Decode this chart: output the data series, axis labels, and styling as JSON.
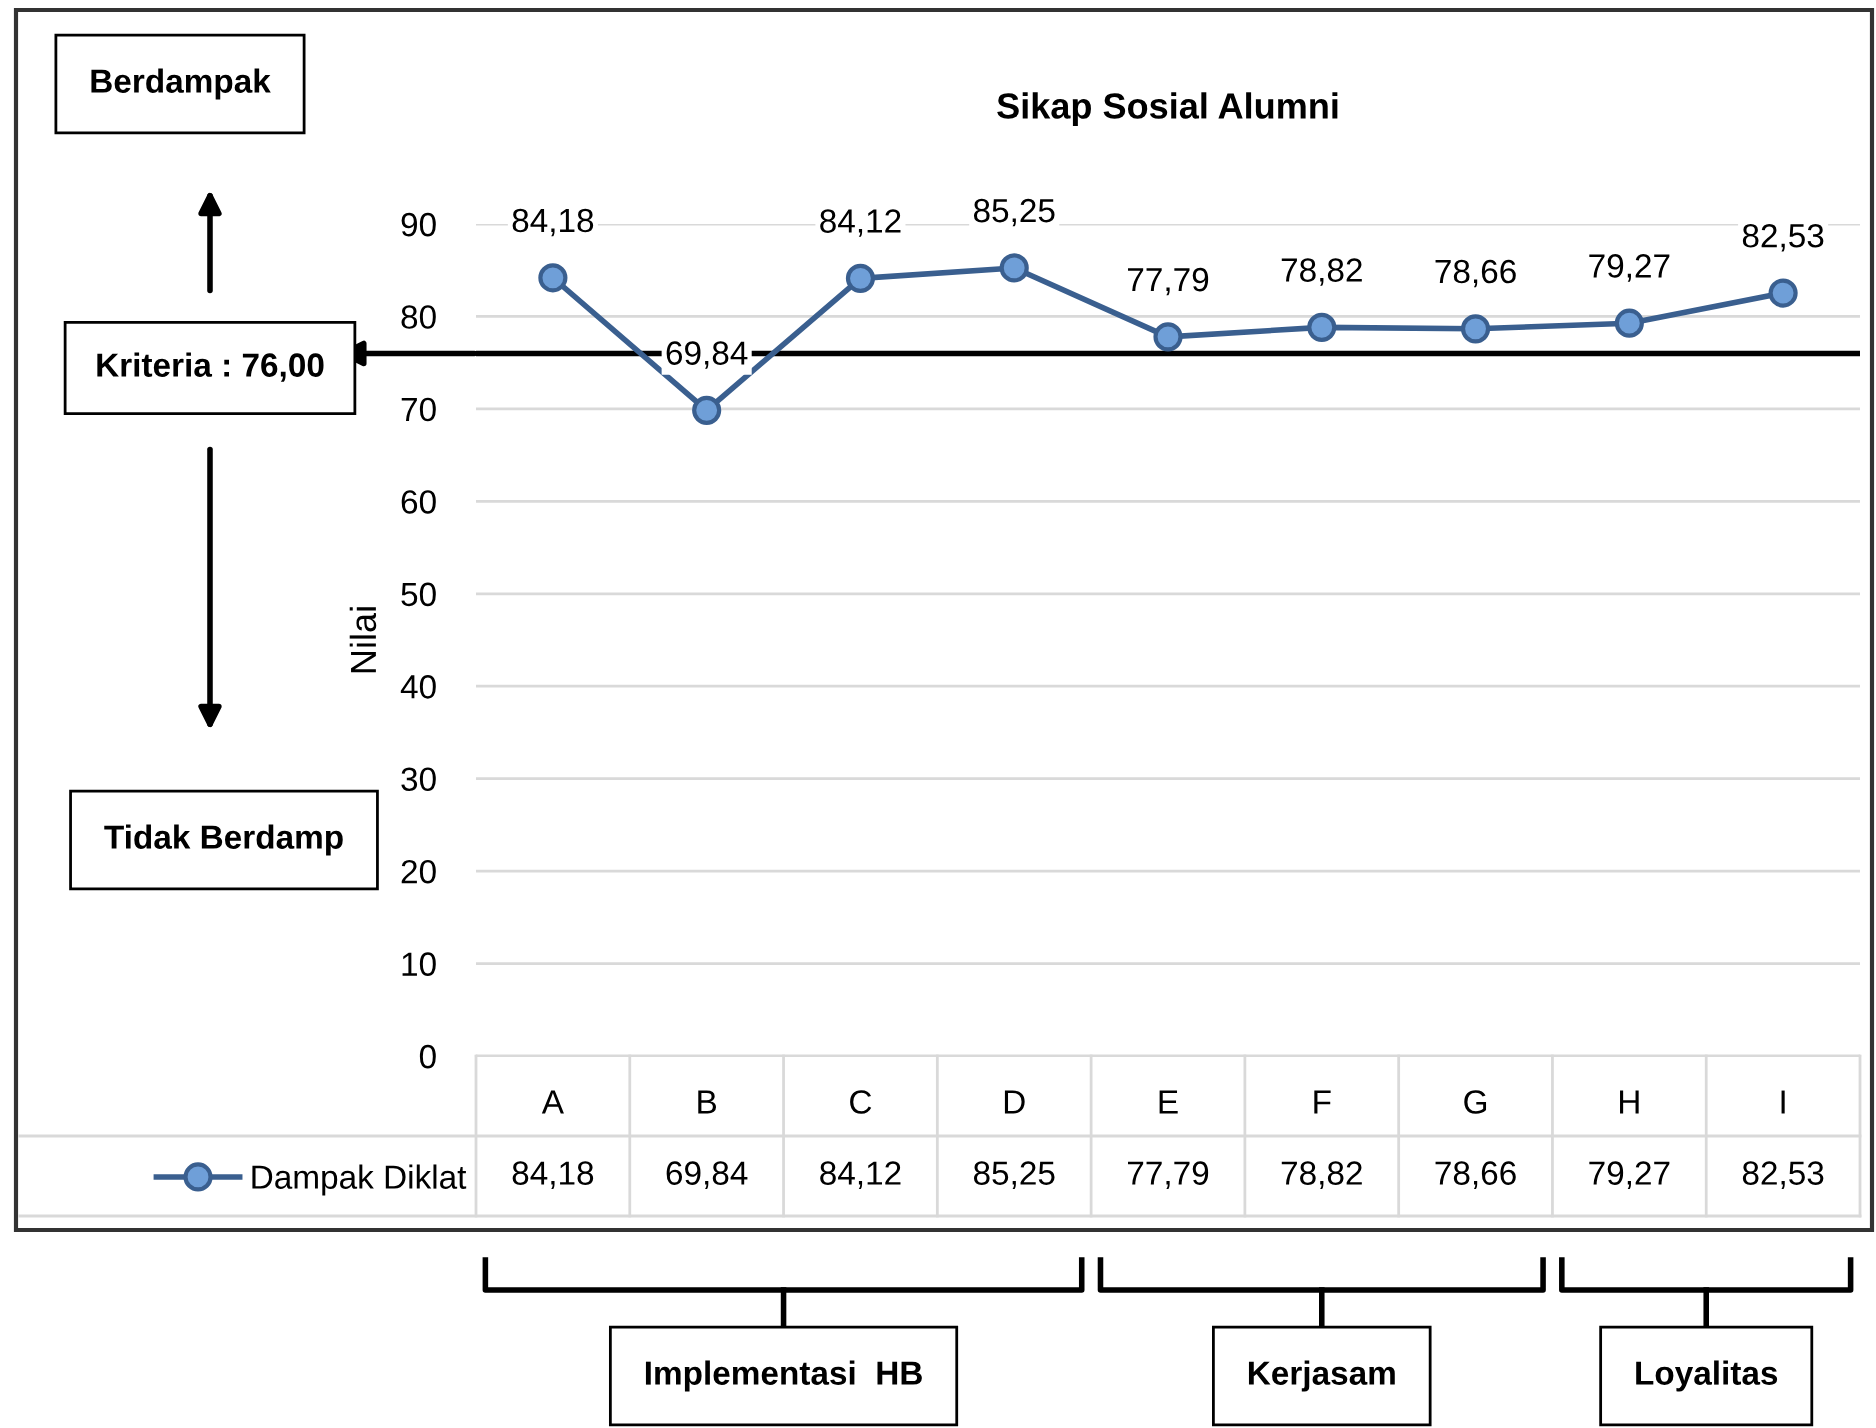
{
  "chart_data": {
    "type": "line",
    "title": "Sikap Sosial Alumni",
    "ylabel": "Nilai",
    "categories": [
      "A",
      "B",
      "C",
      "D",
      "E",
      "F",
      "G",
      "H",
      "I"
    ],
    "series": [
      {
        "name": "Dampak Diklat",
        "color": "#3a5f8f",
        "values": [
          84.18,
          69.84,
          84.12,
          85.25,
          77.79,
          78.82,
          78.66,
          79.27,
          82.53
        ],
        "value_labels": [
          "84,18",
          "69,84",
          "84,12",
          "85,25",
          "77,79",
          "78,82",
          "78,66",
          "79,27",
          "82,53"
        ]
      }
    ],
    "ylim": [
      0,
      90
    ],
    "yticks": [
      0,
      10,
      20,
      30,
      40,
      50,
      60,
      70,
      80,
      90
    ],
    "grid": "y",
    "legend": "bottom",
    "marker": "circle",
    "line_style": "solid",
    "ref_lines": [
      {
        "axis": "y",
        "value": 76,
        "label": "Kriteria : 76,00",
        "color": "#000000"
      }
    ],
    "annotations": [
      "Berdampak",
      "Tidak Berdamp",
      "Implementasi  HB",
      "Kerjasam",
      "Loyalitas"
    ]
  }
}
